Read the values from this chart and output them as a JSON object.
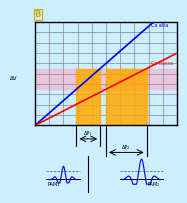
{
  "bg_color": "#cceeff",
  "grid_color": "#888888",
  "title_label": "B",
  "line1_color": "#0000ff",
  "line2_color": "#ff0000",
  "orange_color": "#ffaa00",
  "pink_color": "#ffaacc",
  "label_ca_alta": "Ca alta",
  "label_ca_bassa": "Ca bassa",
  "label_dv": "ΔV",
  "label_dp1": "ΔP₁",
  "label_dp2": "ΔP₂",
  "label_pam1": "PAM₁",
  "label_pam2": "PAM₂",
  "pulse_color": "#0000ff",
  "text_color": "#000000",
  "dashed_color": "#555555"
}
